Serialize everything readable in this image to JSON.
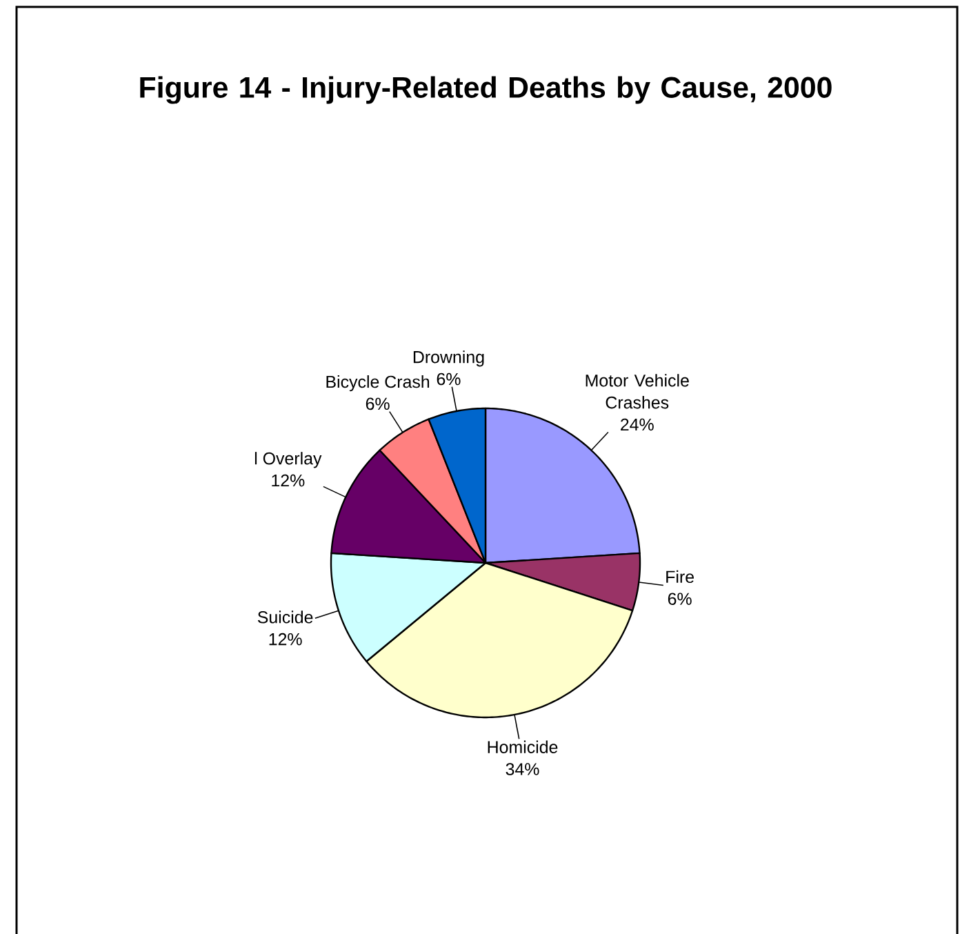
{
  "chart_data": {
    "type": "pie",
    "title": "Figure 14 - Injury-Related Deaths by Cause, 2000",
    "categories": [
      "Motor Vehicle Crashes",
      "Fire",
      "Homicide",
      "Suicide",
      "l Overlay",
      "Bicycle Crash",
      "Drowning"
    ],
    "values": [
      24,
      6,
      34,
      12,
      12,
      6,
      6
    ],
    "value_labels": [
      "24%",
      "6%",
      "34%",
      "12%",
      "12%",
      "6%",
      "6%"
    ],
    "colors": [
      "#9999ff",
      "#993366",
      "#ffffcc",
      "#ccffff",
      "#660066",
      "#ff8080",
      "#0066cc"
    ]
  }
}
